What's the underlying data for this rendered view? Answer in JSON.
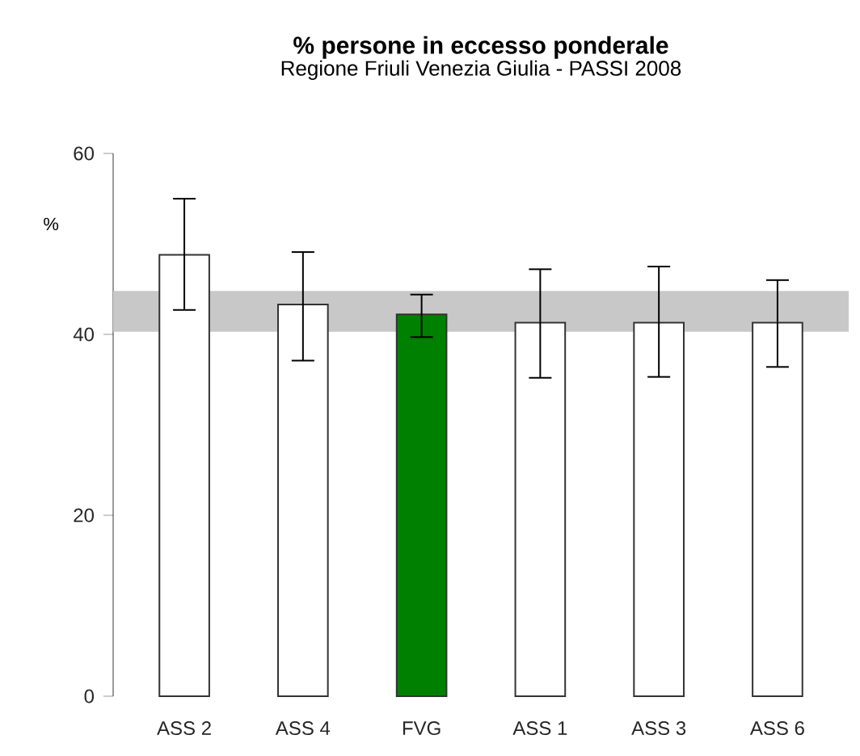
{
  "chart_data": {
    "type": "bar",
    "title": "% persone in eccesso ponderale",
    "subtitle": "Regione Friuli Venezia Giulia  -  PASSI 2008",
    "ylabel": "%",
    "categories": [
      "ASS 2",
      "ASS 4",
      "FVG",
      "ASS 1",
      "ASS 3",
      "ASS 6"
    ],
    "values": [
      48.8,
      43.3,
      42.2,
      41.3,
      41.3,
      41.3
    ],
    "colors": [
      "#ffffff",
      "#ffffff",
      "#008000",
      "#ffffff",
      "#ffffff",
      "#ffffff"
    ],
    "errors": [
      [
        42.7,
        55.0
      ],
      [
        37.1,
        49.1
      ],
      [
        39.7,
        44.4
      ],
      [
        35.2,
        47.2
      ],
      [
        35.3,
        47.5
      ],
      [
        36.4,
        46.0
      ]
    ],
    "ylim": [
      0,
      60
    ],
    "yticks": [
      0,
      20,
      40,
      60
    ],
    "bands": [
      {
        "axis": "y",
        "from": 40.3,
        "to": 44.8,
        "color": "#c8c8c8"
      }
    ]
  }
}
